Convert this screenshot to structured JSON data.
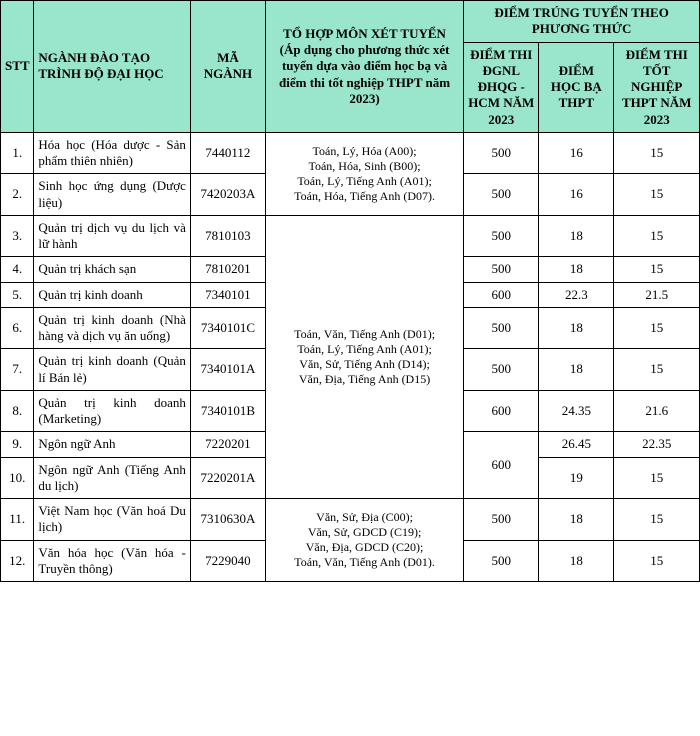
{
  "colors": {
    "header_bg": "#99e6cc",
    "border": "#000000",
    "text": "#000000"
  },
  "header": {
    "stt": "STT",
    "nganh": "NGÀNH ĐÀO TẠO TRÌNH ĐỘ ĐẠI HỌC",
    "ma": "MÃ NGÀNH",
    "combo_line1": "TỔ HỢP MÔN XÉT TUYỂN",
    "combo_line2": "(Áp dụng cho phương thức xét tuyển dựa vào điểm học bạ và điểm thi tốt nghiệp THPT năm 2023)",
    "scores_top": "ĐIỂM TRÚNG TUYỂN THEO PHƯƠNG THỨC",
    "dgnl": "ĐIỂM THI ĐGNL ĐHQG - HCM NĂM 2023",
    "hocba": "ĐIỂM HỌC BẠ THPT",
    "totnghiep": "ĐIỂM THI TỐT NGHIỆP THPT NĂM 2023"
  },
  "combo_group_A": "Toán, Lý, Hóa (A00);\nToán, Hóa, Sinh (B00);\nToán, Lý, Tiếng Anh (A01);\nToán, Hóa, Tiếng Anh (D07).",
  "combo_group_B": "Toán, Văn, Tiếng Anh (D01);\nToán, Lý, Tiếng Anh (A01);\nVăn, Sử, Tiếng Anh (D14);\nVăn, Địa, Tiếng Anh (D15)",
  "combo_group_C": "Văn, Sử, Địa (C00);\nVăn, Sử, GDCD (C19);\nVăn, Địa, GDCD (C20);\nToán, Văn, Tiếng Anh (D01).",
  "rows": [
    {
      "stt": "1.",
      "nganh": "Hóa học (Hóa dược - Sản phẩm thiên nhiên)",
      "ma": "7440112",
      "dgnl": "500",
      "hocba": "16",
      "tn": "15"
    },
    {
      "stt": "2.",
      "nganh": "Sinh học ứng dụng (Dược liệu)",
      "ma": "7420203A",
      "dgnl": "500",
      "hocba": "16",
      "tn": "15"
    },
    {
      "stt": "3.",
      "nganh": "Quản trị dịch vụ du lịch và lữ hành",
      "ma": "7810103",
      "dgnl": "500",
      "hocba": "18",
      "tn": "15"
    },
    {
      "stt": "4.",
      "nganh": "Quản trị khách sạn",
      "ma": "7810201",
      "dgnl": "500",
      "hocba": "18",
      "tn": "15"
    },
    {
      "stt": "5.",
      "nganh": "Quản trị kinh doanh",
      "ma": "7340101",
      "dgnl": "600",
      "hocba": "22.3",
      "tn": "21.5"
    },
    {
      "stt": "6.",
      "nganh": "Quản trị kinh doanh (Nhà hàng và dịch vụ ăn uống)",
      "ma": "7340101C",
      "dgnl": "500",
      "hocba": "18",
      "tn": "15"
    },
    {
      "stt": "7.",
      "nganh": "Quản trị kinh doanh (Quản lí Bán lẻ)",
      "ma": "7340101A",
      "dgnl": "500",
      "hocba": "18",
      "tn": "15"
    },
    {
      "stt": "8.",
      "nganh": "Quản trị kinh doanh (Marketing)",
      "ma": "7340101B",
      "dgnl": "600",
      "hocba": "24.35",
      "tn": "21.6"
    },
    {
      "stt": "9.",
      "nganh": "Ngôn ngữ Anh",
      "ma": "7220201",
      "dgnl": "",
      "hocba": "26.45",
      "tn": "22.35"
    },
    {
      "stt": "10.",
      "nganh": "Ngôn ngữ Anh (Tiếng Anh du lịch)",
      "ma": "7220201A",
      "dgnl": "600",
      "hocba": "19",
      "tn": "15"
    },
    {
      "stt": "11.",
      "nganh": "Việt Nam học (Văn hoá Du lịch)",
      "ma": "7310630A",
      "dgnl": "500",
      "hocba": "18",
      "tn": "15"
    },
    {
      "stt": "12.",
      "nganh": "Văn hóa học (Văn hóa - Truyền thông)",
      "ma": "7229040",
      "dgnl": "500",
      "hocba": "18",
      "tn": "15"
    }
  ]
}
